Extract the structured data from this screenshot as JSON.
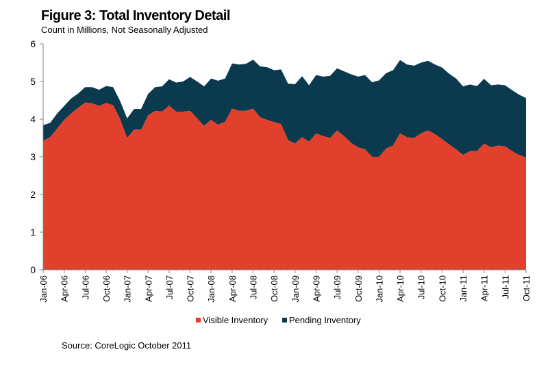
{
  "chart_data": {
    "type": "area",
    "title": "Figure 3: Total Inventory Detail",
    "subtitle": "Count in Millions, Not Seasonally Adjusted",
    "source": "Source: CoreLogic October 2011",
    "stacked": true,
    "ylim": [
      0,
      6
    ],
    "yticks": [
      "0",
      "1",
      "2",
      "3",
      "4",
      "5",
      "6"
    ],
    "x_tick_labels": [
      "Jan-06",
      "Apr-06",
      "Jul-06",
      "Oct-06",
      "Jan-07",
      "Apr-07",
      "Jul-07",
      "Oct-07",
      "Jan-08",
      "Apr-08",
      "Jul-08",
      "Oct-08",
      "Jan-09",
      "Apr-09",
      "Jul-09",
      "Oct-09",
      "Jan-10",
      "Apr-10",
      "Jul-10",
      "Oct-10",
      "Jan-11",
      "Apr-11",
      "Jul-11",
      "Oct-11"
    ],
    "x": [
      "Jan-06",
      "Feb-06",
      "Mar-06",
      "Apr-06",
      "May-06",
      "Jun-06",
      "Jul-06",
      "Aug-06",
      "Sep-06",
      "Oct-06",
      "Nov-06",
      "Dec-06",
      "Jan-07",
      "Feb-07",
      "Mar-07",
      "Apr-07",
      "May-07",
      "Jun-07",
      "Jul-07",
      "Aug-07",
      "Sep-07",
      "Oct-07",
      "Nov-07",
      "Dec-07",
      "Jan-08",
      "Feb-08",
      "Mar-08",
      "Apr-08",
      "May-08",
      "Jun-08",
      "Jul-08",
      "Aug-08",
      "Sep-08",
      "Oct-08",
      "Nov-08",
      "Dec-08",
      "Jan-09",
      "Feb-09",
      "Mar-09",
      "Apr-09",
      "May-09",
      "Jun-09",
      "Jul-09",
      "Aug-09",
      "Sep-09",
      "Oct-09",
      "Nov-09",
      "Dec-09",
      "Jan-10",
      "Feb-10",
      "Mar-10",
      "Apr-10",
      "May-10",
      "Jun-10",
      "Jul-10",
      "Aug-10",
      "Sep-10",
      "Oct-10",
      "Nov-10",
      "Dec-10",
      "Jan-11",
      "Feb-11",
      "Mar-11",
      "Apr-11",
      "May-11",
      "Jun-11",
      "Jul-11",
      "Aug-11",
      "Sep-11",
      "Oct-11"
    ],
    "series": [
      {
        "name": "Visible Inventory",
        "color": "#e0402c",
        "values": [
          3.42,
          3.52,
          3.75,
          3.98,
          4.15,
          4.3,
          4.44,
          4.42,
          4.35,
          4.43,
          4.37,
          4.0,
          3.5,
          3.72,
          3.72,
          4.1,
          4.22,
          4.2,
          4.36,
          4.2,
          4.2,
          4.22,
          4.02,
          3.82,
          3.98,
          3.85,
          3.93,
          4.28,
          4.22,
          4.22,
          4.28,
          4.05,
          3.98,
          3.92,
          3.87,
          3.44,
          3.35,
          3.52,
          3.4,
          3.62,
          3.55,
          3.5,
          3.7,
          3.55,
          3.37,
          3.25,
          3.2,
          3.0,
          3.0,
          3.22,
          3.3,
          3.62,
          3.52,
          3.5,
          3.62,
          3.7,
          3.6,
          3.47,
          3.33,
          3.2,
          3.05,
          3.15,
          3.15,
          3.35,
          3.25,
          3.3,
          3.28,
          3.15,
          3.05,
          2.98
        ]
      },
      {
        "name": "Pending Inventory",
        "color": "#0b3a4f",
        "values": [
          0.42,
          0.38,
          0.4,
          0.37,
          0.4,
          0.38,
          0.41,
          0.43,
          0.43,
          0.45,
          0.48,
          0.48,
          0.52,
          0.55,
          0.55,
          0.57,
          0.63,
          0.67,
          0.7,
          0.77,
          0.8,
          0.9,
          0.98,
          1.05,
          1.1,
          1.17,
          1.15,
          1.2,
          1.23,
          1.25,
          1.3,
          1.35,
          1.4,
          1.38,
          1.45,
          1.5,
          1.58,
          1.62,
          1.5,
          1.55,
          1.58,
          1.65,
          1.65,
          1.72,
          1.82,
          1.88,
          1.97,
          1.98,
          2.03,
          2.0,
          2.0,
          1.95,
          1.93,
          1.92,
          1.88,
          1.85,
          1.85,
          1.9,
          1.88,
          1.88,
          1.82,
          1.77,
          1.73,
          1.72,
          1.65,
          1.62,
          1.62,
          1.62,
          1.6,
          1.58
        ]
      }
    ],
    "legend_position": "bottom",
    "grid": false
  }
}
